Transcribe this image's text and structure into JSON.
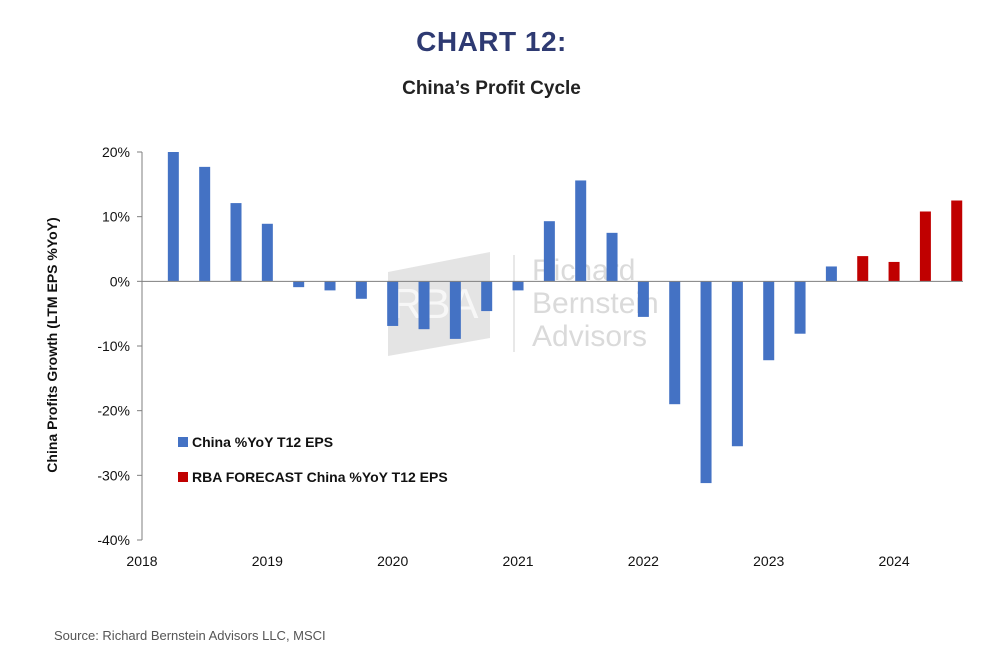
{
  "header": {
    "title": "CHART 12:",
    "subtitle": "China’s Profit Cycle"
  },
  "source": "Source: Richard Bernstein Advisors LLC, MSCI",
  "watermark": {
    "logo_text": "RBA",
    "lines": [
      "Richard",
      "Bernstein",
      "Advisors"
    ]
  },
  "colors": {
    "actual": "#4472c4",
    "forecast": "#c00000",
    "axis": "#7f7f7f",
    "title": "#2e3a72"
  },
  "chart_data": {
    "type": "bar",
    "title": "China’s Profit Cycle",
    "xlabel": "",
    "ylabel": "China Profits Growth  (LTM EPS %YoY)",
    "ylim": [
      -40,
      20
    ],
    "yticks": [
      20,
      10,
      0,
      -10,
      -20,
      -30,
      -40
    ],
    "ytick_labels": [
      "20%",
      "10%",
      "0%",
      "-10%",
      "-20%",
      "-30%",
      "-40%"
    ],
    "xlim": [
      2018,
      2024.55
    ],
    "xticks": [
      2018,
      2019,
      2020,
      2021,
      2022,
      2023,
      2024
    ],
    "xtick_labels": [
      "2018",
      "2019",
      "2020",
      "2021",
      "2022",
      "2023",
      "2024"
    ],
    "legend_position": "lower-left",
    "grid": false,
    "series": [
      {
        "name": "China %YoY T12 EPS",
        "color": "#4472c4",
        "x": [
          2018.25,
          2018.5,
          2018.75,
          2019.0,
          2019.25,
          2019.5,
          2019.75,
          2020.0,
          2020.25,
          2020.5,
          2020.75,
          2021.0,
          2021.25,
          2021.5,
          2021.75,
          2022.0,
          2022.25,
          2022.5,
          2022.75,
          2023.0,
          2023.25,
          2023.5
        ],
        "values": [
          20.0,
          17.7,
          12.1,
          8.9,
          -0.9,
          -1.4,
          -2.7,
          -6.9,
          -7.4,
          -8.9,
          -4.6,
          -1.4,
          9.3,
          15.6,
          7.5,
          -5.5,
          -19.0,
          -31.2,
          -25.5,
          -12.2,
          -8.1,
          2.3
        ]
      },
      {
        "name": "RBA FORECAST China %YoY T12 EPS",
        "color": "#c00000",
        "x": [
          2023.75,
          2024.0,
          2024.25,
          2024.5
        ],
        "values": [
          3.9,
          3.0,
          10.8,
          12.5
        ]
      }
    ]
  }
}
